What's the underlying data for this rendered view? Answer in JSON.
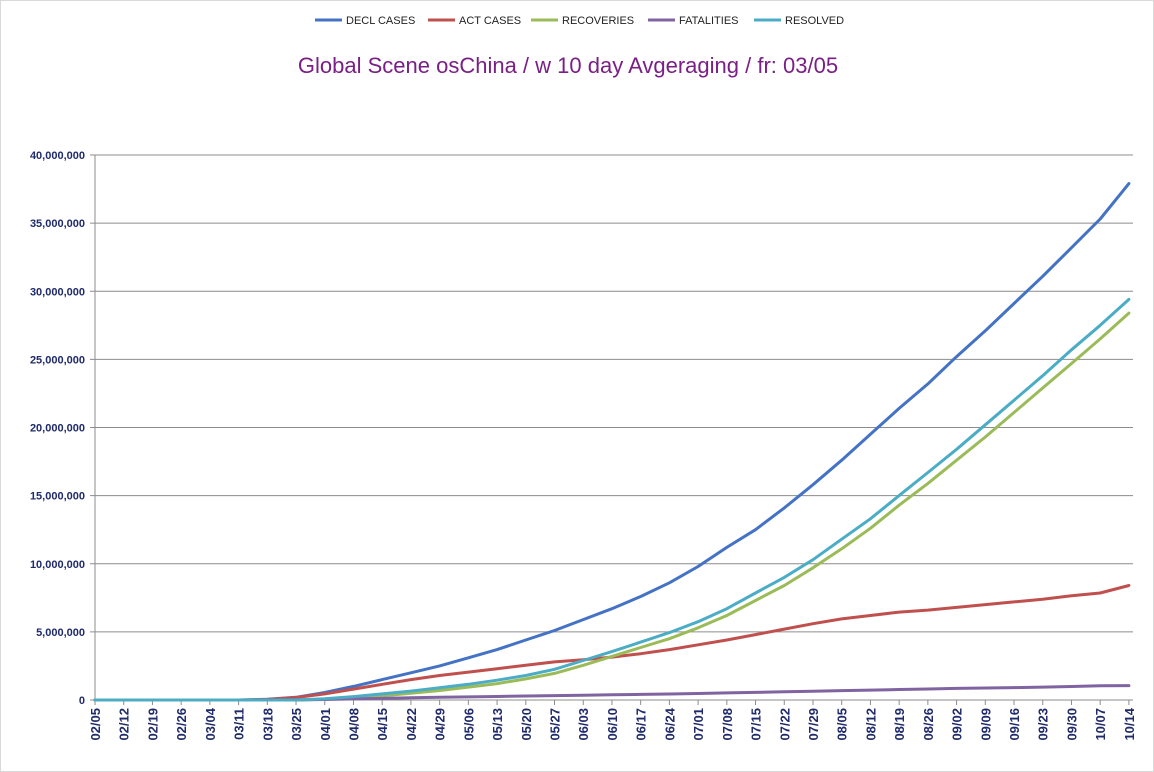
{
  "chart_data": {
    "type": "line",
    "title": "Global Scene osChina / w 10 day Avgeraging / fr: 03/05",
    "xlabel": "",
    "ylabel": "",
    "ylim": [
      0,
      40000000
    ],
    "yticks": [
      "0",
      "5,000,000",
      "10,000,000",
      "15,000,000",
      "20,000,000",
      "25,000,000",
      "30,000,000",
      "35,000,000",
      "40,000,000"
    ],
    "ytick_values": [
      0,
      5000000,
      10000000,
      15000000,
      20000000,
      25000000,
      30000000,
      35000000,
      40000000
    ],
    "x_tick_labels": [
      "02/05",
      "02/12",
      "02/19",
      "02/26",
      "03/04",
      "03/11",
      "03/18",
      "03/25",
      "04/01",
      "04/08",
      "04/15",
      "04/22",
      "04/29",
      "05/06",
      "05/13",
      "05/20",
      "05/27",
      "06/03",
      "06/10",
      "06/17",
      "06/24",
      "07/01",
      "07/08",
      "07/15",
      "07/22",
      "07/29",
      "08/05",
      "08/12",
      "08/19",
      "08/26",
      "09/02",
      "09/09",
      "09/16",
      "09/23",
      "09/30",
      "10/07",
      "10/14"
    ],
    "x_days": [
      0,
      7,
      14,
      21,
      28,
      35,
      42,
      49,
      56,
      63,
      70,
      77,
      84,
      91,
      98,
      105,
      112,
      119,
      126,
      133,
      140,
      147,
      154,
      161,
      168,
      175,
      182,
      189,
      196,
      203,
      210,
      217,
      224,
      231,
      238,
      245,
      252
    ],
    "x_max_day": 253,
    "grid": true,
    "legend_position": "top",
    "series": [
      {
        "name": "DECL CASES",
        "color": "#4472c4",
        "points": [
          [
            0,
            0
          ],
          [
            35,
            0
          ],
          [
            42,
            50000
          ],
          [
            49,
            200000
          ],
          [
            56,
            550000
          ],
          [
            63,
            1000000
          ],
          [
            70,
            1500000
          ],
          [
            77,
            2000000
          ],
          [
            84,
            2500000
          ],
          [
            91,
            3100000
          ],
          [
            98,
            3700000
          ],
          [
            105,
            4400000
          ],
          [
            112,
            5100000
          ],
          [
            119,
            5900000
          ],
          [
            126,
            6700000
          ],
          [
            133,
            7600000
          ],
          [
            140,
            8600000
          ],
          [
            147,
            9800000
          ],
          [
            154,
            11200000
          ],
          [
            161,
            12500000
          ],
          [
            168,
            14100000
          ],
          [
            175,
            15800000
          ],
          [
            182,
            17600000
          ],
          [
            189,
            19500000
          ],
          [
            196,
            21400000
          ],
          [
            203,
            23200000
          ],
          [
            210,
            25200000
          ],
          [
            217,
            27100000
          ],
          [
            224,
            29100000
          ],
          [
            231,
            31100000
          ],
          [
            238,
            33200000
          ],
          [
            245,
            35300000
          ],
          [
            252,
            37900000
          ]
        ]
      },
      {
        "name": "ACT CASES",
        "color": "#c0504d",
        "points": [
          [
            0,
            0
          ],
          [
            35,
            0
          ],
          [
            42,
            40000
          ],
          [
            49,
            180000
          ],
          [
            56,
            450000
          ],
          [
            63,
            800000
          ],
          [
            70,
            1150000
          ],
          [
            77,
            1500000
          ],
          [
            84,
            1800000
          ],
          [
            91,
            2050000
          ],
          [
            98,
            2300000
          ],
          [
            105,
            2550000
          ],
          [
            112,
            2800000
          ],
          [
            119,
            2950000
          ],
          [
            126,
            3150000
          ],
          [
            133,
            3400000
          ],
          [
            140,
            3700000
          ],
          [
            147,
            4050000
          ],
          [
            154,
            4400000
          ],
          [
            161,
            4800000
          ],
          [
            168,
            5200000
          ],
          [
            175,
            5600000
          ],
          [
            182,
            5950000
          ],
          [
            189,
            6200000
          ],
          [
            196,
            6450000
          ],
          [
            203,
            6600000
          ],
          [
            210,
            6800000
          ],
          [
            217,
            7000000
          ],
          [
            224,
            7200000
          ],
          [
            231,
            7400000
          ],
          [
            238,
            7650000
          ],
          [
            245,
            7850000
          ],
          [
            252,
            8400000
          ]
        ]
      },
      {
        "name": "RECOVERIES",
        "color": "#9bbb59",
        "points": [
          [
            0,
            0
          ],
          [
            49,
            0
          ],
          [
            56,
            50000
          ],
          [
            63,
            150000
          ],
          [
            70,
            300000
          ],
          [
            77,
            500000
          ],
          [
            84,
            700000
          ],
          [
            91,
            950000
          ],
          [
            98,
            1200000
          ],
          [
            105,
            1550000
          ],
          [
            112,
            1950000
          ],
          [
            119,
            2550000
          ],
          [
            126,
            3200000
          ],
          [
            133,
            3850000
          ],
          [
            140,
            4500000
          ],
          [
            147,
            5300000
          ],
          [
            154,
            6200000
          ],
          [
            161,
            7300000
          ],
          [
            168,
            8400000
          ],
          [
            175,
            9700000
          ],
          [
            182,
            11100000
          ],
          [
            189,
            12600000
          ],
          [
            196,
            14300000
          ],
          [
            203,
            15900000
          ],
          [
            210,
            17600000
          ],
          [
            217,
            19300000
          ],
          [
            224,
            21100000
          ],
          [
            231,
            22900000
          ],
          [
            238,
            24700000
          ],
          [
            245,
            26500000
          ],
          [
            252,
            28400000
          ]
        ]
      },
      {
        "name": "FATALITIES",
        "color": "#8064a2",
        "points": [
          [
            0,
            0
          ],
          [
            42,
            0
          ],
          [
            49,
            10000
          ],
          [
            56,
            40000
          ],
          [
            63,
            80000
          ],
          [
            70,
            120000
          ],
          [
            77,
            160000
          ],
          [
            84,
            200000
          ],
          [
            91,
            230000
          ],
          [
            98,
            260000
          ],
          [
            105,
            290000
          ],
          [
            112,
            320000
          ],
          [
            119,
            350000
          ],
          [
            126,
            380000
          ],
          [
            133,
            410000
          ],
          [
            140,
            440000
          ],
          [
            147,
            480000
          ],
          [
            154,
            520000
          ],
          [
            161,
            560000
          ],
          [
            168,
            600000
          ],
          [
            175,
            640000
          ],
          [
            182,
            690000
          ],
          [
            189,
            730000
          ],
          [
            196,
            770000
          ],
          [
            203,
            810000
          ],
          [
            210,
            850000
          ],
          [
            217,
            880000
          ],
          [
            224,
            910000
          ],
          [
            231,
            950000
          ],
          [
            238,
            990000
          ],
          [
            245,
            1040000
          ],
          [
            252,
            1060000
          ]
        ]
      },
      {
        "name": "RESOLVED",
        "color": "#4bacc6",
        "points": [
          [
            0,
            0
          ],
          [
            49,
            0
          ],
          [
            56,
            90000
          ],
          [
            63,
            250000
          ],
          [
            70,
            450000
          ],
          [
            77,
            650000
          ],
          [
            84,
            900000
          ],
          [
            91,
            1150000
          ],
          [
            98,
            1450000
          ],
          [
            105,
            1800000
          ],
          [
            112,
            2250000
          ],
          [
            119,
            2900000
          ],
          [
            126,
            3550000
          ],
          [
            133,
            4250000
          ],
          [
            140,
            4950000
          ],
          [
            147,
            5750000
          ],
          [
            154,
            6700000
          ],
          [
            161,
            7850000
          ],
          [
            168,
            9000000
          ],
          [
            175,
            10300000
          ],
          [
            182,
            11800000
          ],
          [
            189,
            13300000
          ],
          [
            196,
            15000000
          ],
          [
            203,
            16700000
          ],
          [
            210,
            18400000
          ],
          [
            217,
            20200000
          ],
          [
            224,
            22000000
          ],
          [
            231,
            23800000
          ],
          [
            238,
            25700000
          ],
          [
            245,
            27500000
          ],
          [
            252,
            29400000
          ]
        ]
      }
    ]
  }
}
